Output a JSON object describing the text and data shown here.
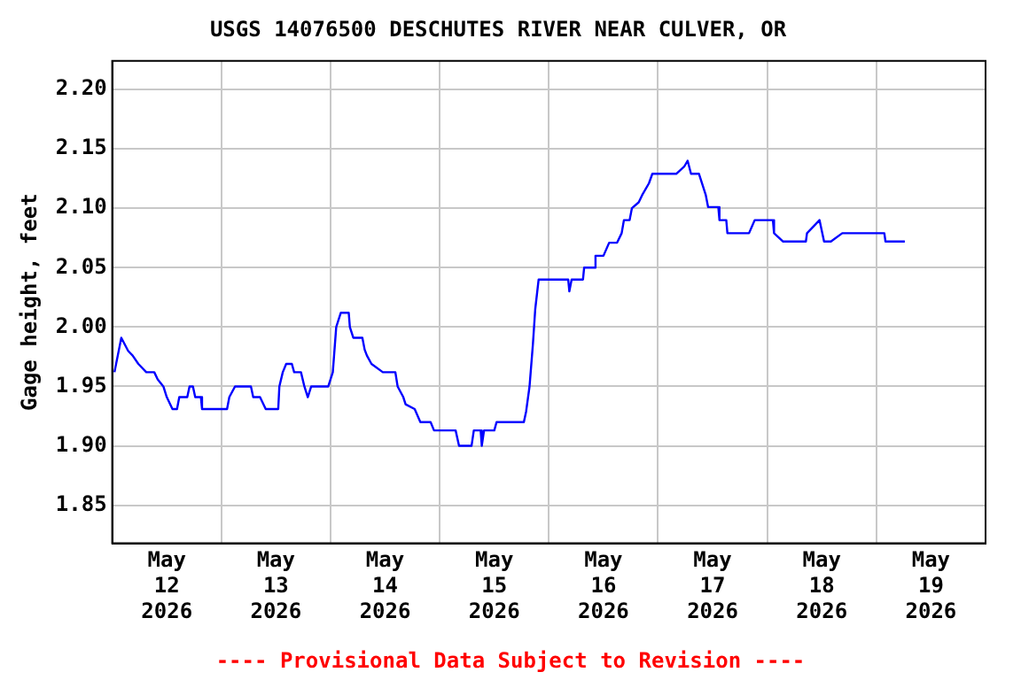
{
  "chart_data": {
    "type": "line",
    "title": "USGS 14076500 DESCHUTES RIVER NEAR CULVER, OR",
    "ylabel": "Gage height, feet",
    "annotations": [
      "---- Provisional Data Subject to Revision ----"
    ],
    "x": [
      "2026-05-12T00:30",
      "2026-05-12T02:00",
      "2026-05-12T03:30",
      "2026-05-12T04:30",
      "2026-05-12T05:45",
      "2026-05-12T07:30",
      "2026-05-12T09:15",
      "2026-05-12T10:00",
      "2026-05-12T11:15",
      "2026-05-12T12:00",
      "2026-05-12T13:15",
      "2026-05-12T14:15",
      "2026-05-12T14:45",
      "2026-05-12T16:30",
      "2026-05-12T17:00",
      "2026-05-12T17:45",
      "2026-05-12T18:15",
      "2026-05-12T19:30",
      "2026-05-12T19:45",
      "2026-05-13T01:15",
      "2026-05-13T01:45",
      "2026-05-13T03:00",
      "2026-05-13T06:30",
      "2026-05-13T07:00",
      "2026-05-13T08:30",
      "2026-05-13T09:45",
      "2026-05-13T12:30",
      "2026-05-13T12:45",
      "2026-05-13T13:30",
      "2026-05-13T14:15",
      "2026-05-13T15:30",
      "2026-05-13T16:00",
      "2026-05-13T17:30",
      "2026-05-13T18:15",
      "2026-05-13T19:00",
      "2026-05-13T19:45",
      "2026-05-13T23:30",
      "2026-05-14T00:30",
      "2026-05-14T01:15",
      "2026-05-14T02:15",
      "2026-05-14T04:00",
      "2026-05-14T04:15",
      "2026-05-14T05:00",
      "2026-05-14T07:00",
      "2026-05-14T07:30",
      "2026-05-14T08:00",
      "2026-05-14T09:00",
      "2026-05-14T11:30",
      "2026-05-14T14:15",
      "2026-05-14T14:45",
      "2026-05-14T16:00",
      "2026-05-14T16:30",
      "2026-05-14T18:30",
      "2026-05-14T19:45",
      "2026-05-14T22:00",
      "2026-05-14T22:45",
      "2026-05-15T03:30",
      "2026-05-15T04:15",
      "2026-05-15T07:00",
      "2026-05-15T07:30",
      "2026-05-15T09:00",
      "2026-05-15T09:15",
      "2026-05-15T09:45",
      "2026-05-15T12:00",
      "2026-05-15T12:30",
      "2026-05-15T18:30",
      "2026-05-15T19:00",
      "2026-05-15T19:45",
      "2026-05-15T20:30",
      "2026-05-15T21:00",
      "2026-05-15T21:45",
      "2026-05-16T04:15",
      "2026-05-16T04:30",
      "2026-05-16T05:00",
      "2026-05-16T07:30",
      "2026-05-16T07:45",
      "2026-05-16T10:00",
      "2026-05-16T10:15",
      "2026-05-16T12:00",
      "2026-05-16T13:15",
      "2026-05-16T15:00",
      "2026-05-16T16:00",
      "2026-05-16T16:30",
      "2026-05-16T17:45",
      "2026-05-16T18:15",
      "2026-05-16T19:45",
      "2026-05-16T20:30",
      "2026-05-16T22:00",
      "2026-05-16T22:45",
      "2026-05-17T04:00",
      "2026-05-17T05:45",
      "2026-05-17T06:30",
      "2026-05-17T07:15",
      "2026-05-17T09:00",
      "2026-05-17T09:45",
      "2026-05-17T10:30",
      "2026-05-17T11:00",
      "2026-05-17T13:15",
      "2026-05-17T13:30",
      "2026-05-17T15:00",
      "2026-05-17T15:15",
      "2026-05-17T20:00",
      "2026-05-17T21:15",
      "2026-05-18T01:15",
      "2026-05-18T01:30",
      "2026-05-18T03:30",
      "2026-05-18T08:30",
      "2026-05-18T08:45",
      "2026-05-18T11:30",
      "2026-05-18T12:30",
      "2026-05-18T14:00",
      "2026-05-18T16:30",
      "2026-05-19T01:45",
      "2026-05-19T02:00",
      "2026-05-19T06:15"
    ],
    "series": [
      {
        "color": "#0000ff",
        "values": [
          1.962,
          1.991,
          1.98,
          1.976,
          1.969,
          1.962,
          1.962,
          1.956,
          1.95,
          1.941,
          1.931,
          1.931,
          1.941,
          1.941,
          1.95,
          1.95,
          1.941,
          1.941,
          1.931,
          1.931,
          1.941,
          1.95,
          1.95,
          1.941,
          1.941,
          1.931,
          1.931,
          1.95,
          1.962,
          1.969,
          1.969,
          1.962,
          1.962,
          1.95,
          1.941,
          1.95,
          1.95,
          1.962,
          2.0,
          2.012,
          2.012,
          2.0,
          1.991,
          1.991,
          1.981,
          1.976,
          1.969,
          1.962,
          1.962,
          1.95,
          1.941,
          1.935,
          1.931,
          1.92,
          1.92,
          1.913,
          1.913,
          1.9,
          1.9,
          1.913,
          1.913,
          1.9,
          1.913,
          1.913,
          1.92,
          1.92,
          1.929,
          1.95,
          1.986,
          2.015,
          2.04,
          2.04,
          2.03,
          2.04,
          2.04,
          2.05,
          2.05,
          2.06,
          2.06,
          2.071,
          2.071,
          2.079,
          2.09,
          2.09,
          2.1,
          2.105,
          2.111,
          2.121,
          2.129,
          2.129,
          2.135,
          2.14,
          2.129,
          2.129,
          2.12,
          2.111,
          2.101,
          2.101,
          2.09,
          2.09,
          2.079,
          2.079,
          2.09,
          2.09,
          2.079,
          2.072,
          2.072,
          2.079,
          2.09,
          2.072,
          2.072,
          2.079,
          2.079,
          2.072,
          2.072
        ]
      }
    ],
    "xlim": [
      "2026-05-12T00:00",
      "2026-05-20T00:00"
    ],
    "xticks": [
      {
        "value": "2026-05-12T12:00",
        "label": "May\n12\n2026"
      },
      {
        "value": "2026-05-13T00:00",
        "label": null
      },
      {
        "value": "2026-05-13T12:00",
        "label": "May\n13\n2026"
      },
      {
        "value": "2026-05-14T00:00",
        "label": null
      },
      {
        "value": "2026-05-14T12:00",
        "label": "May\n14\n2026"
      },
      {
        "value": "2026-05-15T00:00",
        "label": null
      },
      {
        "value": "2026-05-15T12:00",
        "label": "May\n15\n2026"
      },
      {
        "value": "2026-05-16T00:00",
        "label": null
      },
      {
        "value": "2026-05-16T12:00",
        "label": "May\n16\n2026"
      },
      {
        "value": "2026-05-17T00:00",
        "label": null
      },
      {
        "value": "2026-05-17T12:00",
        "label": "May\n17\n2026"
      },
      {
        "value": "2026-05-18T00:00",
        "label": null
      },
      {
        "value": "2026-05-18T12:00",
        "label": "May\n18\n2026"
      },
      {
        "value": "2026-05-19T00:00",
        "label": null
      },
      {
        "value": "2026-05-19T12:00",
        "label": "May\n19\n2026"
      }
    ],
    "ylim": [
      1.818,
      2.224
    ],
    "yticks": [
      1.85,
      {
        "value": 1.9,
        "label": "1.90"
      },
      1.95,
      {
        "value": 2.0,
        "label": "2.00"
      },
      2.05,
      {
        "value": 2.1,
        "label": "2.10"
      },
      2.15,
      {
        "value": 2.2,
        "label": "2.20"
      }
    ],
    "grid": true,
    "legend": false,
    "marker": "none",
    "line_style": "solid"
  }
}
